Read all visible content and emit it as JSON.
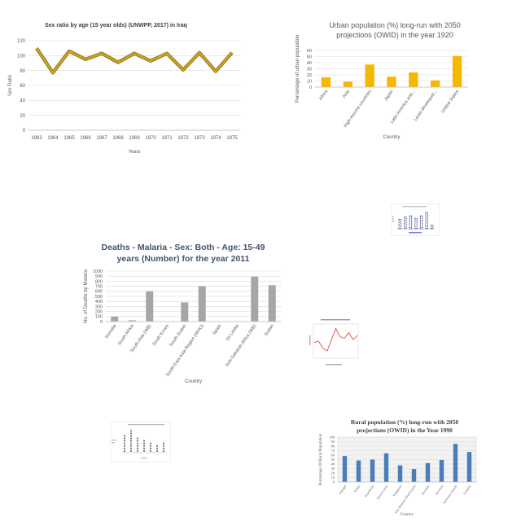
{
  "chart_data": [
    {
      "id": "sex-ratio",
      "type": "line",
      "title": "Sex ratio by age (15 year olds) (UNWPP, 2017) in Iraq",
      "xlabel": "Years",
      "ylabel": "Sex Ratio",
      "ylim": [
        0,
        120
      ],
      "yticks": [
        0,
        20,
        40,
        60,
        80,
        100,
        120
      ],
      "grid": true,
      "x": [
        "1963",
        "1964",
        "1965",
        "1966",
        "1967",
        "1968",
        "1969",
        "1970",
        "1971",
        "1972",
        "1973",
        "1974",
        "1975"
      ],
      "values": [
        110,
        77,
        106,
        95,
        103,
        91,
        103,
        93,
        103,
        81,
        104,
        79,
        104
      ],
      "color": "#c9a227"
    },
    {
      "id": "urban-pop",
      "type": "bar",
      "title": "Urban population (%) long-run with 2050 projections (OWID) in the year 1920",
      "xlabel": "Country",
      "ylabel": "Percentage of urban population",
      "ylim": [
        0,
        60
      ],
      "yticks": [
        0,
        10,
        20,
        30,
        40,
        50,
        60
      ],
      "grid": true,
      "categories": [
        "Africa",
        "Asia",
        "High-income countries",
        "Japan",
        "Latin America and...",
        "Least developed...",
        "United States"
      ],
      "values": [
        16,
        9,
        37,
        17,
        24,
        11,
        51
      ],
      "color": "#f5b800"
    },
    {
      "id": "malaria-deaths",
      "type": "bar",
      "title": "Deaths - Malaria - Sex: Both - Age: 15-49 years (Number) for the year 2011",
      "xlabel": "Country",
      "ylabel": "No. of Deaths by Malaria",
      "ylim": [
        0,
        1000
      ],
      "yticks": [
        0,
        100,
        200,
        300,
        400,
        500,
        600,
        700,
        800,
        900,
        1000
      ],
      "grid": true,
      "categories": [
        "Somalia",
        "South Africa",
        "South Asia (WB)",
        "South Korea",
        "South Sudan",
        "South-East Asia Region (WHO)",
        "Spain",
        "Sri Lanka",
        "Sub-Saharan Africa (WB)",
        "Sudan"
      ],
      "values": [
        100,
        25,
        600,
        0,
        380,
        700,
        0,
        0,
        890,
        720
      ],
      "color": "#a6a6a6"
    },
    {
      "id": "rural-pop",
      "type": "bar",
      "title": "Rural population (%) long-run with 2050 projections (OWID) in the Year 1990",
      "xlabel": "Country",
      "ylabel": "Percentage Of Rural Population",
      "ylim": [
        0,
        100
      ],
      "yticks": [
        0,
        10,
        20,
        30,
        40,
        50,
        60,
        70,
        80,
        90,
        100
      ],
      "grid": true,
      "categories": [
        "Senegal",
        "Serbia",
        "Seychelles",
        "Sierra Leone",
        "Singapore",
        "Sint Maarten (Dutch part)",
        "Slovakia",
        "Slovenia",
        "Solomon Islands",
        "Somalia"
      ],
      "values": [
        58,
        48,
        50,
        64,
        37,
        29,
        42,
        49,
        85,
        67
      ],
      "color": "#4a7ebb"
    },
    {
      "id": "mini-bar",
      "type": "bar",
      "values": [
        4,
        5,
        5.5,
        4.5,
        5.5,
        7,
        1.5
      ],
      "color": "#1f2f8f"
    },
    {
      "id": "mini-line",
      "type": "line",
      "values": [
        5,
        5.5,
        3,
        2,
        6,
        10,
        7,
        6.5,
        8.5,
        6,
        7.5
      ],
      "color": "#e0503a"
    },
    {
      "id": "mini-dots",
      "type": "bar",
      "values": [
        7,
        9,
        6,
        5,
        4,
        3,
        4
      ],
      "color": "#777777"
    }
  ]
}
